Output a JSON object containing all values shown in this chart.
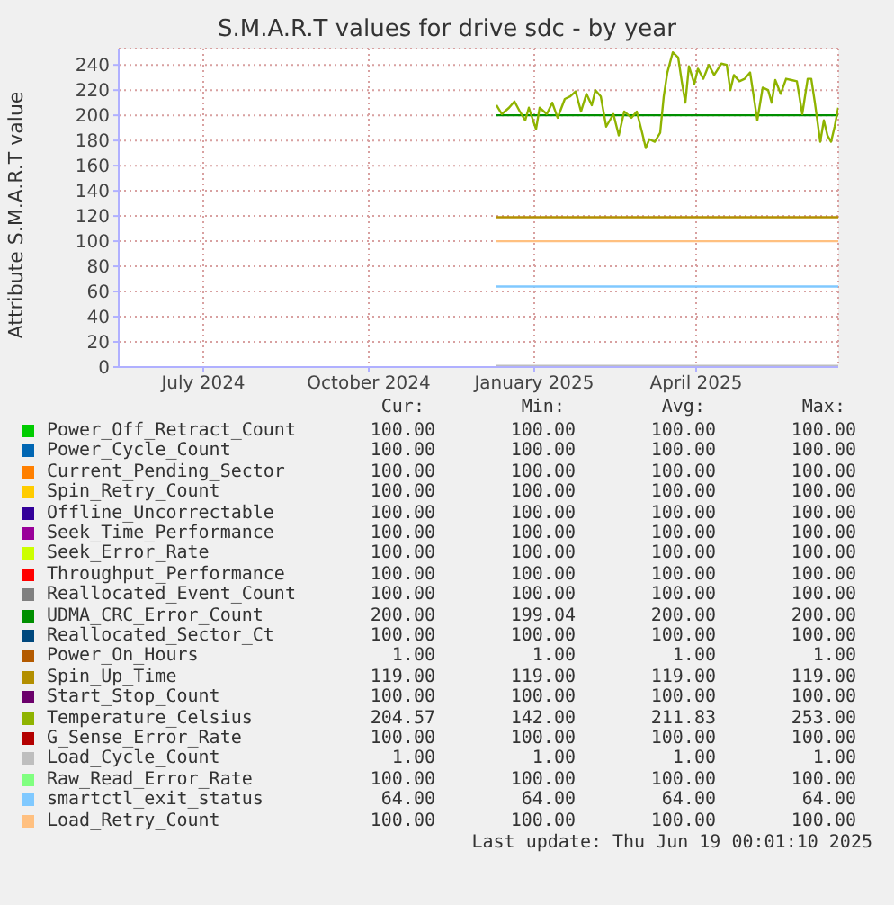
{
  "chart_data": {
    "type": "line",
    "title": "S.M.A.R.T values for drive sdc - by year",
    "ylabel": "Attribute S.M.A.R.T value",
    "xlim": [
      "2024-05-15",
      "2025-06-19"
    ],
    "xticks": [
      {
        "value": "2024-07-01",
        "label": "July 2024"
      },
      {
        "value": "2024-10-01",
        "label": "October 2024"
      },
      {
        "value": "2025-01-01",
        "label": "January 2025"
      },
      {
        "value": "2025-04-01",
        "label": "April 2025"
      }
    ],
    "ylim": [
      0,
      253
    ],
    "yticks": [
      0,
      20,
      40,
      60,
      80,
      100,
      120,
      140,
      160,
      180,
      200,
      220,
      240
    ],
    "grid": true,
    "legend": "bottom",
    "series": [
      {
        "name": "Power_Off_Retract_Count",
        "color": "#00cc00"
      },
      {
        "name": "Power_Cycle_Count",
        "color": "#0066b3"
      },
      {
        "name": "Current_Pending_Sector",
        "color": "#ff8000"
      },
      {
        "name": "Spin_Retry_Count",
        "color": "#ffcc00"
      },
      {
        "name": "Offline_Uncorrectable",
        "color": "#330099"
      },
      {
        "name": "Seek_Time_Performance",
        "color": "#990099"
      },
      {
        "name": "Seek_Error_Rate",
        "color": "#ccff00"
      },
      {
        "name": "Throughput_Performance",
        "color": "#ff0000"
      },
      {
        "name": "Reallocated_Event_Count",
        "color": "#808080"
      },
      {
        "name": "UDMA_CRC_Error_Count",
        "color": "#008f00",
        "x": [
          "2024-12-11",
          "2025-06-19"
        ],
        "values": [
          200,
          200
        ]
      },
      {
        "name": "Reallocated_Sector_Ct",
        "color": "#00487d"
      },
      {
        "name": "Power_On_Hours",
        "color": "#b35a00"
      },
      {
        "name": "Spin_Up_Time",
        "color": "#b38f00",
        "x": [
          "2024-12-11",
          "2025-06-19"
        ],
        "values": [
          119,
          119
        ]
      },
      {
        "name": "Start_Stop_Count",
        "color": "#6b006b"
      },
      {
        "name": "Temperature_Celsius",
        "color": "#8fb300",
        "x": [
          "2024-12-11",
          "2024-12-14",
          "2024-12-18",
          "2024-12-21",
          "2024-12-24",
          "2024-12-27",
          "2024-12-29",
          "2025-01-02",
          "2025-01-04",
          "2025-01-08",
          "2025-01-11",
          "2025-01-14",
          "2025-01-18",
          "2025-01-21",
          "2025-01-24",
          "2025-01-27",
          "2025-01-30",
          "2025-02-02",
          "2025-02-04",
          "2025-02-07",
          "2025-02-10",
          "2025-02-14",
          "2025-02-17",
          "2025-02-20",
          "2025-02-24",
          "2025-02-27",
          "2025-03-02",
          "2025-03-04",
          "2025-03-06",
          "2025-03-09",
          "2025-03-12",
          "2025-03-14",
          "2025-03-16",
          "2025-03-19",
          "2025-03-22",
          "2025-03-24",
          "2025-03-26",
          "2025-03-28",
          "2025-03-31",
          "2025-04-02",
          "2025-04-05",
          "2025-04-08",
          "2025-04-11",
          "2025-04-15",
          "2025-04-18",
          "2025-04-20",
          "2025-04-22",
          "2025-04-25",
          "2025-04-28",
          "2025-05-01",
          "2025-05-03",
          "2025-05-05",
          "2025-05-08",
          "2025-05-11",
          "2025-05-13",
          "2025-05-15",
          "2025-05-18",
          "2025-05-21",
          "2025-05-24",
          "2025-05-27",
          "2025-05-30",
          "2025-06-02",
          "2025-06-04",
          "2025-06-06",
          "2025-06-09",
          "2025-06-11",
          "2025-06-13",
          "2025-06-15",
          "2025-06-17",
          "2025-06-19"
        ],
        "values": [
          208,
          201,
          206,
          211,
          203,
          196,
          206,
          189,
          206,
          201,
          210,
          198,
          213,
          215,
          219,
          203,
          217,
          208,
          220,
          215,
          191,
          201,
          184,
          203,
          198,
          203,
          186,
          174,
          181,
          179,
          186,
          215,
          234,
          250,
          246,
          227,
          210,
          239,
          225,
          237,
          229,
          240,
          232,
          241,
          240,
          220,
          232,
          227,
          229,
          234,
          215,
          196,
          222,
          220,
          210,
          228,
          217,
          229,
          228,
          227,
          201,
          229,
          229,
          210,
          179,
          196,
          184,
          179,
          191,
          206
        ]
      },
      {
        "name": "G_Sense_Error_Rate",
        "color": "#b30000"
      },
      {
        "name": "Load_Cycle_Count",
        "color": "#bebebe",
        "x": [
          "2024-12-11",
          "2025-06-19"
        ],
        "values": [
          1,
          1
        ]
      },
      {
        "name": "Raw_Read_Error_Rate",
        "color": "#80ff80"
      },
      {
        "name": "smartctl_exit_status",
        "color": "#80c9ff",
        "x": [
          "2024-12-11",
          "2025-06-19"
        ],
        "values": [
          64,
          64
        ]
      },
      {
        "name": "Load_Retry_Count",
        "color": "#ffc080",
        "x": [
          "2024-12-11",
          "2025-06-19"
        ],
        "values": [
          100,
          100
        ]
      }
    ],
    "annotations": [
      "Cur:",
      "Min:",
      "Avg:",
      "Max:",
      "100.00",
      "100.00",
      "100.00",
      "100.00",
      "100.00",
      "100.00",
      "100.00",
      "100.00",
      "100.00",
      "100.00",
      "100.00",
      "100.00",
      "100.00",
      "100.00",
      "100.00",
      "100.00",
      "100.00",
      "100.00",
      "100.00",
      "100.00",
      "100.00",
      "100.00",
      "100.00",
      "100.00",
      "100.00",
      "100.00",
      "100.00",
      "100.00",
      "100.00",
      "100.00",
      "100.00",
      "100.00",
      "100.00",
      "100.00",
      "100.00",
      "100.00",
      "200.00",
      "199.04",
      "200.00",
      "200.00",
      "100.00",
      "100.00",
      "100.00",
      "100.00",
      "1.00",
      "1.00",
      "1.00",
      "1.00",
      "119.00",
      "119.00",
      "119.00",
      "119.00",
      "100.00",
      "100.00",
      "100.00",
      "100.00",
      "204.57",
      "142.00",
      "211.83",
      "253.00",
      "100.00",
      "100.00",
      "100.00",
      "100.00",
      "1.00",
      "1.00",
      "1.00",
      "1.00",
      "100.00",
      "100.00",
      "100.00",
      "100.00",
      "64.00",
      "64.00",
      "64.00",
      "64.00",
      "100.00",
      "100.00",
      "100.00",
      "100.00",
      "Last update: Thu Jun 19 00:01:10 2025"
    ]
  }
}
